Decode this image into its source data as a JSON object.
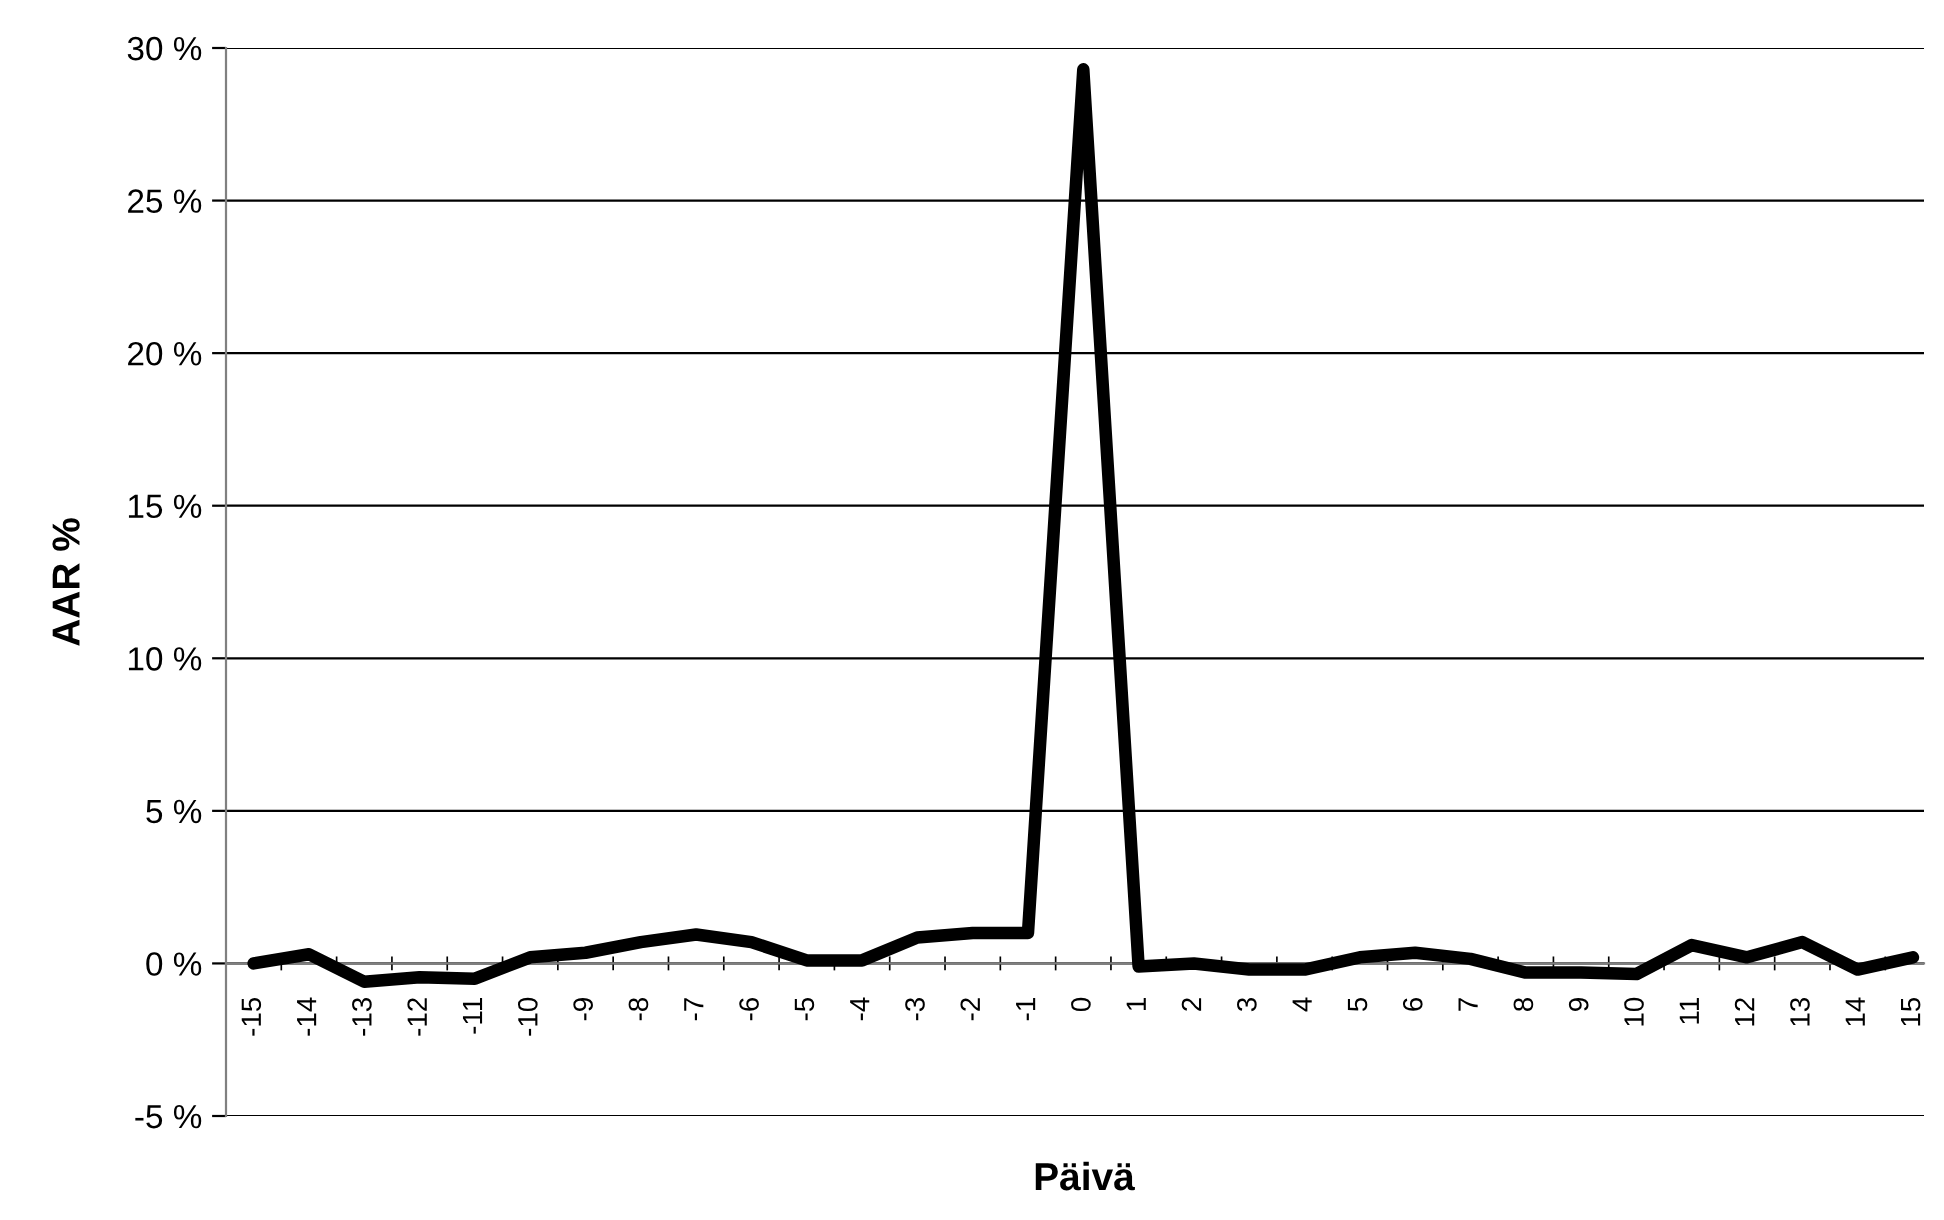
{
  "chart_data": {
    "type": "line",
    "xlabel": "Päivä",
    "ylabel": "AAR %",
    "categories": [
      "-15",
      "-14",
      "-13",
      "-12",
      "-11",
      "-10",
      "-9",
      "-8",
      "-7",
      "-6",
      "-5",
      "-4",
      "-3",
      "-2",
      "-1",
      "0",
      "1",
      "2",
      "3",
      "4",
      "5",
      "6",
      "7",
      "8",
      "9",
      "10",
      "11",
      "12",
      "13",
      "14",
      "15"
    ],
    "series": [
      {
        "color": "#000000",
        "values": [
          0.0,
          0.3,
          -0.6,
          -0.45,
          -0.5,
          0.2,
          0.35,
          0.7,
          0.95,
          0.7,
          0.1,
          0.1,
          0.85,
          1.0,
          1.0,
          29.3,
          -0.1,
          0.0,
          -0.2,
          -0.2,
          0.2,
          0.35,
          0.15,
          -0.3,
          -0.3,
          -0.35,
          0.6,
          0.2,
          0.7,
          -0.2,
          0.2
        ]
      }
    ],
    "ylim": [
      -5,
      30
    ],
    "yticks": [
      {
        "value": -5,
        "label": "-5 %"
      },
      {
        "value": 0,
        "label": "0 %"
      },
      {
        "value": 5,
        "label": "5 %"
      },
      {
        "value": 10,
        "label": "10 %"
      },
      {
        "value": 15,
        "label": "15 %"
      },
      {
        "value": 20,
        "label": "20 %"
      },
      {
        "value": 25,
        "label": "25 %"
      },
      {
        "value": 30,
        "label": "30 %"
      }
    ],
    "grid": "y",
    "legend": false,
    "marker": "none",
    "line_style": "solid"
  }
}
